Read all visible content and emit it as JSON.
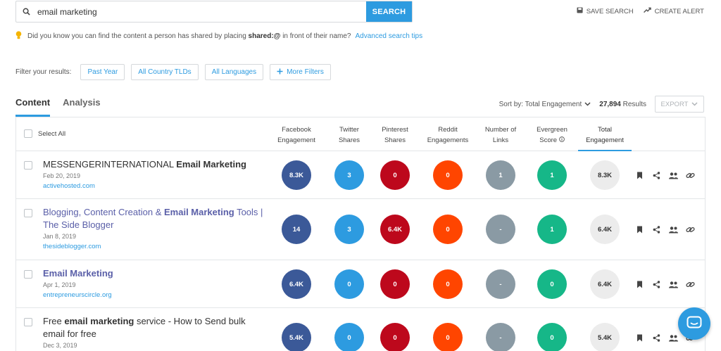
{
  "search": {
    "value": "email marketing",
    "button_label": "SEARCH"
  },
  "top_actions": {
    "save_search": "SAVE SEARCH",
    "create_alert": "CREATE ALERT"
  },
  "tip": {
    "pre": "Did you know you can find the content a person has shared by placing",
    "bold": "shared:@",
    "post": "in front of their name?",
    "link": "Advanced search tips"
  },
  "filters": {
    "label": "Filter your results:",
    "past_year": "Past Year",
    "country": "All Country TLDs",
    "languages": "All Languages",
    "more": "More Filters"
  },
  "tabs": {
    "content": "Content",
    "analysis": "Analysis"
  },
  "sort": {
    "label": "Sort by: Total Engagement",
    "results_count": "27,894",
    "results_label": "Results",
    "export": "EXPORT"
  },
  "table": {
    "select_all": "Select All",
    "columns": {
      "facebook_1": "Facebook",
      "facebook_2": "Engagement",
      "twitter_1": "Twitter",
      "twitter_2": "Shares",
      "pinterest_1": "Pinterest",
      "pinterest_2": "Shares",
      "reddit_1": "Reddit",
      "reddit_2": "Engagements",
      "links_1": "Number of",
      "links_2": "Links",
      "evergreen_1": "Evergreen",
      "evergreen_2": "Score",
      "total_1": "Total",
      "total_2": "Engagement"
    },
    "rows": [
      {
        "title_pre": "MESSENGERINTERNATIONAL ",
        "title_bold": "Email Marketing",
        "title_post": "",
        "date": "Feb 20, 2019",
        "domain": "activehosted.com",
        "facebook": "8.3K",
        "twitter": "3",
        "pinterest": "0",
        "reddit": "0",
        "links": "1",
        "evergreen": "1",
        "total": "8.3K"
      },
      {
        "title_pre": "Blogging, Content Creation & ",
        "title_bold": "Email Marketing",
        "title_post": " Tools | The Side Blogger",
        "date": "Jan 8, 2019",
        "domain": "thesideblogger.com",
        "facebook": "14",
        "twitter": "3",
        "pinterest": "6.4K",
        "reddit": "0",
        "links": "-",
        "evergreen": "1",
        "total": "6.4K"
      },
      {
        "title_pre": "",
        "title_bold": "Email Marketing",
        "title_post": "",
        "date": "Apr 1, 2019",
        "domain": "entrepreneurscircle.org",
        "facebook": "6.4K",
        "twitter": "0",
        "pinterest": "0",
        "reddit": "0",
        "links": "-",
        "evergreen": "0",
        "total": "6.4K"
      },
      {
        "title_pre": "Free ",
        "title_bold": "email marketing",
        "title_post": " service - How to Send bulk email for free",
        "date": "Dec 3, 2019",
        "domain": "",
        "facebook": "5.4K",
        "twitter": "0",
        "pinterest": "0",
        "reddit": "0",
        "links": "-",
        "evergreen": "0",
        "total": "5.4K"
      }
    ]
  },
  "colors": {
    "accent": "#2d9be0",
    "facebook": "#3b5998",
    "twitter": "#2d9be0",
    "pinterest": "#bd081c",
    "reddit": "#ff4500",
    "links": "#8a9aa4",
    "evergreen": "#16b788",
    "total": "#ececec"
  },
  "icons": [
    "search-icon",
    "save-icon",
    "trend-icon",
    "bulb-icon",
    "plus-icon",
    "chevron-down-icon",
    "info-icon",
    "bookmark-icon",
    "share-icon",
    "users-icon",
    "link-icon",
    "chat-icon"
  ]
}
